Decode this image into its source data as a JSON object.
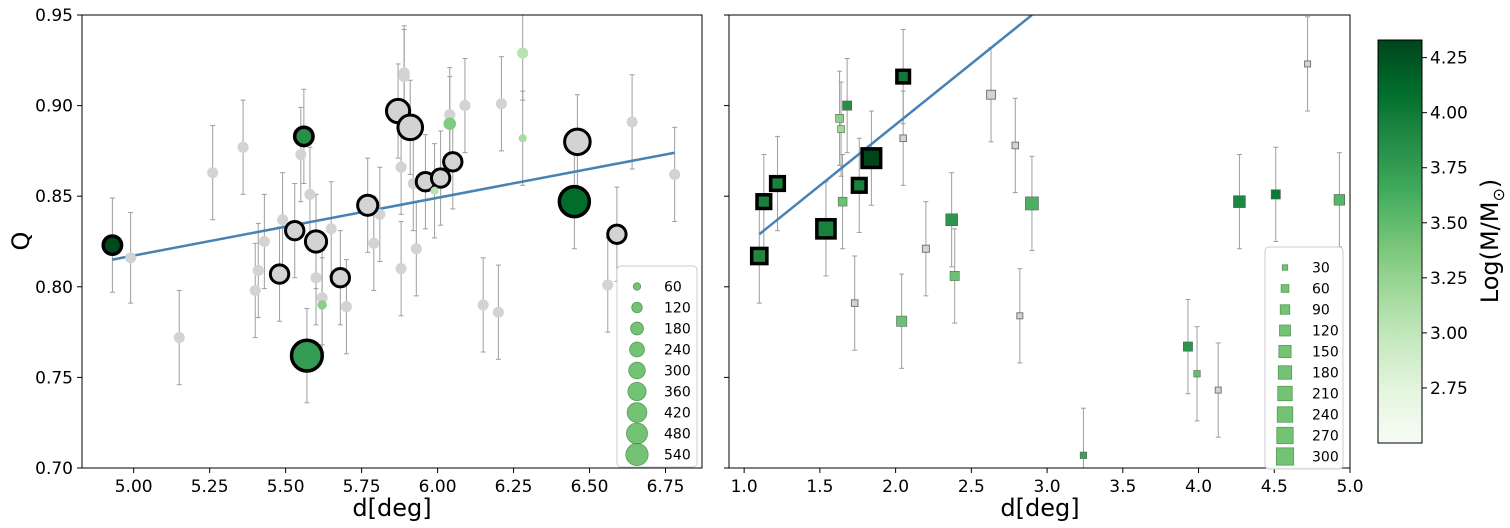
{
  "colors": {
    "fit_line": "#4682b4",
    "gray_point": "#d3d3d3",
    "errorbar": "#9e9e9e",
    "legend_marker": "#5cb85c",
    "frame": "#000000"
  },
  "chart_data": [
    {
      "type": "scatter",
      "title": "",
      "xlabel": "d[deg]",
      "ylabel": "Q",
      "xlim": [
        4.83,
        6.87
      ],
      "ylim": [
        0.7,
        0.95
      ],
      "xticks": [
        "5.00",
        "5.25",
        "5.50",
        "5.75",
        "6.00",
        "6.25",
        "6.50",
        "6.75"
      ],
      "xtick_values": [
        5.0,
        5.25,
        5.5,
        5.75,
        6.0,
        6.25,
        6.5,
        6.75
      ],
      "yticks": [
        "0.70",
        "0.75",
        "0.80",
        "0.85",
        "0.90",
        "0.95"
      ],
      "ytick_values": [
        0.7,
        0.75,
        0.8,
        0.85,
        0.9,
        0.95
      ],
      "marker": "circle",
      "legend": {
        "placement": "lower-right",
        "title": "",
        "labels": [
          "60",
          "120",
          "180",
          "240",
          "300",
          "360",
          "420",
          "480",
          "540"
        ],
        "sizes": [
          60,
          120,
          180,
          240,
          300,
          360,
          420,
          480,
          540
        ]
      },
      "fit_line": {
        "x": [
          4.93,
          6.78
        ],
        "y": [
          0.815,
          0.874
        ]
      },
      "gray_points": [
        {
          "x": 4.99,
          "y": 0.816,
          "err": 0.025
        },
        {
          "x": 5.15,
          "y": 0.772,
          "err": 0.026
        },
        {
          "x": 5.26,
          "y": 0.863,
          "err": 0.026
        },
        {
          "x": 5.36,
          "y": 0.877,
          "err": 0.026
        },
        {
          "x": 5.4,
          "y": 0.798,
          "err": 0.026
        },
        {
          "x": 5.41,
          "y": 0.809,
          "err": 0.026
        },
        {
          "x": 5.43,
          "y": 0.825,
          "err": 0.026
        },
        {
          "x": 5.49,
          "y": 0.837,
          "err": 0.026
        },
        {
          "x": 5.55,
          "y": 0.873,
          "err": 0.026
        },
        {
          "x": 5.58,
          "y": 0.851,
          "err": 0.026
        },
        {
          "x": 5.6,
          "y": 0.805,
          "err": 0.026
        },
        {
          "x": 5.62,
          "y": 0.794,
          "err": 0.026
        },
        {
          "x": 5.65,
          "y": 0.832,
          "err": 0.026
        },
        {
          "x": 5.7,
          "y": 0.789,
          "err": 0.026
        },
        {
          "x": 5.79,
          "y": 0.824,
          "err": 0.026
        },
        {
          "x": 5.81,
          "y": 0.84,
          "err": 0.026
        },
        {
          "x": 5.88,
          "y": 0.81,
          "err": 0.026
        },
        {
          "x": 5.88,
          "y": 0.866,
          "err": 0.026
        },
        {
          "x": 5.89,
          "y": 0.918,
          "err": 0.026
        },
        {
          "x": 5.89,
          "y": 0.916,
          "err": 0.026
        },
        {
          "x": 5.92,
          "y": 0.857,
          "err": 0.026
        },
        {
          "x": 5.93,
          "y": 0.821,
          "err": 0.026
        },
        {
          "x": 6.04,
          "y": 0.895,
          "err": 0.026
        },
        {
          "x": 6.09,
          "y": 0.9,
          "err": 0.026
        },
        {
          "x": 6.15,
          "y": 0.79,
          "err": 0.026
        },
        {
          "x": 6.2,
          "y": 0.786,
          "err": 0.026
        },
        {
          "x": 6.21,
          "y": 0.901,
          "err": 0.026
        },
        {
          "x": 6.56,
          "y": 0.801,
          "err": 0.026
        },
        {
          "x": 6.64,
          "y": 0.891,
          "err": 0.026
        },
        {
          "x": 6.78,
          "y": 0.862,
          "err": 0.026
        }
      ],
      "colored_points": [
        {
          "x": 4.93,
          "y": 0.823,
          "err": 0.026,
          "mass": 4.3,
          "size": 150,
          "outline": true
        },
        {
          "x": 5.56,
          "y": 0.883,
          "err": 0.026,
          "mass": 3.85,
          "size": 150,
          "outline": true
        },
        {
          "x": 5.57,
          "y": 0.762,
          "err": 0.026,
          "mass": 3.75,
          "size": 420,
          "outline": true
        },
        {
          "x": 5.62,
          "y": 0.79,
          "err": 0.026,
          "mass": 3.3,
          "size": 40,
          "outline": false
        },
        {
          "x": 6.04,
          "y": 0.89,
          "err": 0.026,
          "mass": 3.35,
          "size": 70,
          "outline": false
        },
        {
          "x": 5.99,
          "y": 0.853,
          "err": 0.026,
          "mass": 3.05,
          "size": 30,
          "outline": false
        },
        {
          "x": 6.28,
          "y": 0.929,
          "err": 0.026,
          "mass": 3.05,
          "size": 55,
          "outline": false
        },
        {
          "x": 6.28,
          "y": 0.882,
          "err": 0.026,
          "mass": 3.15,
          "size": 30,
          "outline": false
        },
        {
          "x": 6.45,
          "y": 0.847,
          "err": 0.026,
          "mass": 4.1,
          "size": 400,
          "outline": true
        }
      ],
      "outlined_gray_points": [
        {
          "x": 5.48,
          "y": 0.807,
          "err": 0.026,
          "size": 150
        },
        {
          "x": 5.53,
          "y": 0.831,
          "err": 0.026,
          "size": 150
        },
        {
          "x": 5.6,
          "y": 0.825,
          "err": 0.026,
          "size": 200
        },
        {
          "x": 5.68,
          "y": 0.805,
          "err": 0.026,
          "size": 150
        },
        {
          "x": 5.77,
          "y": 0.845,
          "err": 0.026,
          "size": 180
        },
        {
          "x": 5.87,
          "y": 0.897,
          "err": 0.026,
          "size": 240
        },
        {
          "x": 5.91,
          "y": 0.888,
          "err": 0.026,
          "size": 270
        },
        {
          "x": 5.96,
          "y": 0.858,
          "err": 0.026,
          "size": 150
        },
        {
          "x": 6.01,
          "y": 0.86,
          "err": 0.026,
          "size": 150
        },
        {
          "x": 6.05,
          "y": 0.869,
          "err": 0.026,
          "size": 150
        },
        {
          "x": 6.46,
          "y": 0.88,
          "err": 0.026,
          "size": 290
        },
        {
          "x": 6.59,
          "y": 0.829,
          "err": 0.026,
          "size": 150
        }
      ]
    },
    {
      "type": "scatter",
      "title": "",
      "xlabel": "d[deg]",
      "ylabel": "",
      "xlim": [
        0.9,
        5.0
      ],
      "ylim": [
        0.7,
        0.95
      ],
      "xticks": [
        "1.0",
        "1.5",
        "2.0",
        "2.5",
        "3.0",
        "3.5",
        "4.0",
        "4.5",
        "5.0"
      ],
      "xtick_values": [
        1.0,
        1.5,
        2.0,
        2.5,
        3.0,
        3.5,
        4.0,
        4.5,
        5.0
      ],
      "yticks_shown": false,
      "marker": "square",
      "legend": {
        "placement": "lower-right",
        "title": "",
        "labels": [
          "30",
          "60",
          "90",
          "120",
          "150",
          "180",
          "210",
          "240",
          "270",
          "300"
        ],
        "sizes": [
          30,
          60,
          90,
          120,
          150,
          180,
          210,
          240,
          270,
          300
        ]
      },
      "fit_line": {
        "x": [
          1.1,
          2.9
        ],
        "y": [
          0.829,
          0.95
        ]
      },
      "gray_points": [
        {
          "x": 1.73,
          "y": 0.791,
          "err": 0.026,
          "size": 30
        },
        {
          "x": 2.05,
          "y": 0.882,
          "err": 0.026,
          "size": 30
        },
        {
          "x": 2.2,
          "y": 0.821,
          "err": 0.026,
          "size": 35
        },
        {
          "x": 2.63,
          "y": 0.906,
          "err": 0.026,
          "size": 55
        },
        {
          "x": 2.79,
          "y": 0.878,
          "err": 0.026,
          "size": 30
        },
        {
          "x": 2.82,
          "y": 0.784,
          "err": 0.026,
          "size": 25
        },
        {
          "x": 4.13,
          "y": 0.743,
          "err": 0.026,
          "size": 25
        },
        {
          "x": 4.72,
          "y": 0.923,
          "err": 0.026,
          "size": 25
        }
      ],
      "colored_points": [
        {
          "x": 1.63,
          "y": 0.893,
          "err": 0.026,
          "mass": 3.3,
          "size": 45,
          "outline": false
        },
        {
          "x": 1.64,
          "y": 0.887,
          "err": 0.026,
          "mass": 3.2,
          "size": 35,
          "outline": false
        },
        {
          "x": 1.65,
          "y": 0.847,
          "err": 0.026,
          "mass": 3.45,
          "size": 55,
          "outline": false
        },
        {
          "x": 1.68,
          "y": 0.9,
          "err": 0.026,
          "mass": 3.85,
          "size": 60,
          "outline": false
        },
        {
          "x": 2.04,
          "y": 0.781,
          "err": 0.026,
          "mass": 3.45,
          "size": 75,
          "outline": false
        },
        {
          "x": 2.37,
          "y": 0.837,
          "err": 0.026,
          "mass": 3.8,
          "size": 100,
          "outline": false
        },
        {
          "x": 2.39,
          "y": 0.806,
          "err": 0.026,
          "mass": 3.45,
          "size": 60,
          "outline": false
        },
        {
          "x": 2.9,
          "y": 0.846,
          "err": 0.026,
          "mass": 3.6,
          "size": 120,
          "outline": false
        },
        {
          "x": 3.24,
          "y": 0.707,
          "err": 0.026,
          "mass": 3.7,
          "size": 30,
          "outline": false
        },
        {
          "x": 3.93,
          "y": 0.767,
          "err": 0.026,
          "mass": 3.8,
          "size": 60,
          "outline": false
        },
        {
          "x": 3.99,
          "y": 0.752,
          "err": 0.026,
          "mass": 3.5,
          "size": 30,
          "outline": false
        },
        {
          "x": 4.27,
          "y": 0.847,
          "err": 0.026,
          "mass": 3.9,
          "size": 100,
          "outline": false
        },
        {
          "x": 4.51,
          "y": 0.851,
          "err": 0.026,
          "mass": 4.0,
          "size": 60,
          "outline": false
        },
        {
          "x": 4.93,
          "y": 0.848,
          "err": 0.026,
          "mass": 3.55,
          "size": 80,
          "outline": false
        },
        {
          "x": 1.1,
          "y": 0.817,
          "err": 0.026,
          "mass": 3.9,
          "size": 160,
          "outline": true
        },
        {
          "x": 1.13,
          "y": 0.847,
          "err": 0.026,
          "mass": 3.95,
          "size": 130,
          "outline": true
        },
        {
          "x": 1.22,
          "y": 0.857,
          "err": 0.026,
          "mass": 3.95,
          "size": 130,
          "outline": true
        },
        {
          "x": 1.54,
          "y": 0.832,
          "err": 0.026,
          "mass": 3.95,
          "size": 230,
          "outline": true
        },
        {
          "x": 1.76,
          "y": 0.856,
          "err": 0.026,
          "mass": 3.95,
          "size": 130,
          "outline": true
        },
        {
          "x": 1.84,
          "y": 0.871,
          "err": 0.026,
          "mass": 4.35,
          "size": 240,
          "outline": true
        },
        {
          "x": 2.05,
          "y": 0.916,
          "err": 0.026,
          "mass": 4.0,
          "size": 110,
          "outline": true
        }
      ]
    },
    {
      "type": "colorbar",
      "label": "Log(M/M",
      "label_sub": "⊙",
      "label_close": ")",
      "range": [
        2.5,
        4.33
      ],
      "ticks": [
        "2.75",
        "3.00",
        "3.25",
        "3.50",
        "3.75",
        "4.00",
        "4.25"
      ],
      "tick_values": [
        2.75,
        3.0,
        3.25,
        3.5,
        3.75,
        4.0,
        4.25
      ],
      "cmap": [
        "#f7fcf5",
        "#e5f5e0",
        "#c7e9c0",
        "#a1d99b",
        "#74c476",
        "#41ab5d",
        "#238b45",
        "#006d2c",
        "#00441b"
      ]
    }
  ]
}
